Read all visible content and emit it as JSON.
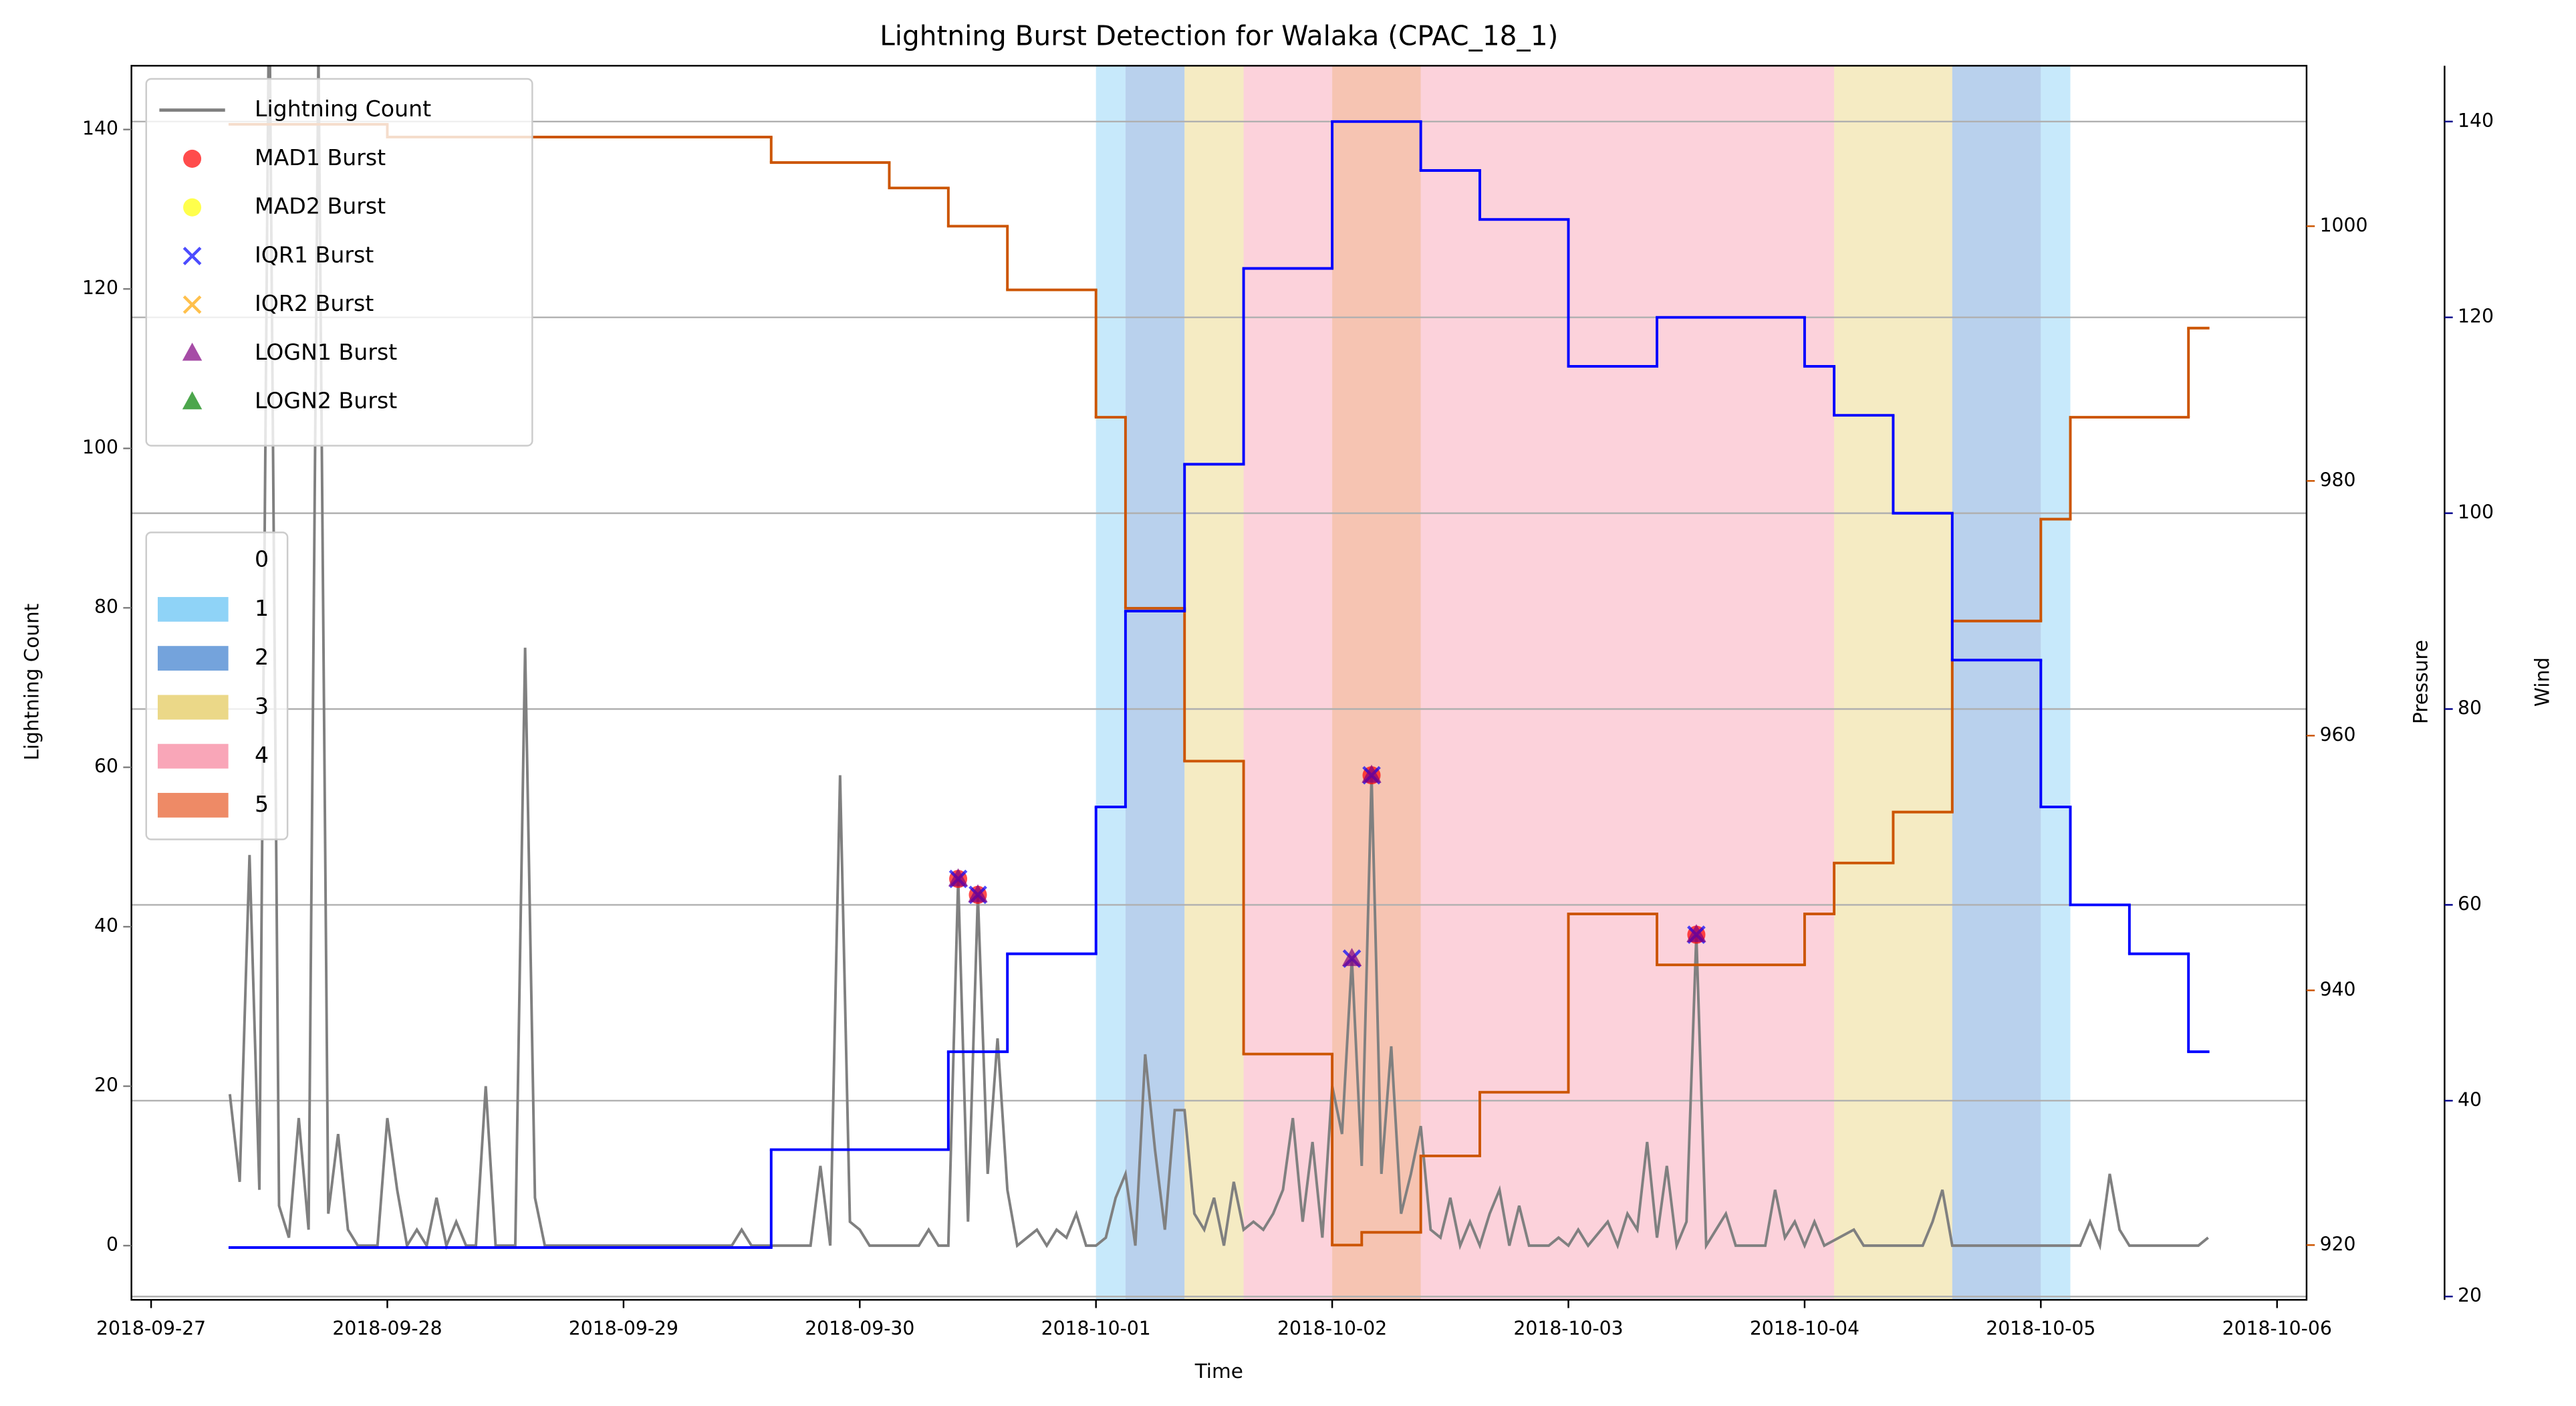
{
  "chart_data": {
    "type": "line",
    "title": "Lightning Burst Detection for Walaka (CPAC_18_1)",
    "xlabel": "Time",
    "ylabel": "Lightning Count",
    "y2label": "Pressure",
    "y3label": "Wind",
    "ycolor": "#808080",
    "y2color": "#cc5500",
    "y3color": "#00008b",
    "xlim": [
      "2018-09-26T22:00",
      "2018-10-06T03:00"
    ],
    "xticks": [
      "2018-09-27",
      "2018-09-28",
      "2018-09-29",
      "2018-09-30",
      "2018-10-01",
      "2018-10-02",
      "2018-10-03",
      "2018-10-04",
      "2018-10-05",
      "2018-10-06"
    ],
    "ylim": [
      -6.8,
      148
    ],
    "yticks": [
      0,
      20,
      40,
      60,
      80,
      100,
      120,
      140
    ],
    "y2lim": [
      915.7,
      1012.6
    ],
    "y2ticks": [
      920,
      940,
      960,
      980,
      1000
    ],
    "y3lim": [
      19.66,
      145.7
    ],
    "y3ticks": [
      20,
      40,
      60,
      80,
      100,
      120,
      140
    ],
    "grid": true,
    "grid_axis": "y3",
    "legend": "upper left",
    "band_legend": "center left",
    "band_categories": [
      {
        "name": "0",
        "color": "none"
      },
      {
        "name": "1",
        "color": "#8fd3f7"
      },
      {
        "name": "2",
        "color": "#74a3dc"
      },
      {
        "name": "3",
        "color": "#ebd888"
      },
      {
        "name": "4",
        "color": "#f9a6b8"
      },
      {
        "name": "5",
        "color": "#ee8a66"
      }
    ],
    "bands": [
      {
        "start": "2018-10-01T00:00",
        "end": "2018-10-01T03:00",
        "category": 1
      },
      {
        "start": "2018-10-01T03:00",
        "end": "2018-10-01T09:00",
        "category": 2
      },
      {
        "start": "2018-10-01T09:00",
        "end": "2018-10-01T15:00",
        "category": 3
      },
      {
        "start": "2018-10-01T15:00",
        "end": "2018-10-02T00:00",
        "category": 4
      },
      {
        "start": "2018-10-02T00:00",
        "end": "2018-10-02T09:00",
        "category": 5
      },
      {
        "start": "2018-10-02T09:00",
        "end": "2018-10-04T03:00",
        "category": 4
      },
      {
        "start": "2018-10-04T03:00",
        "end": "2018-10-04T15:00",
        "category": 3
      },
      {
        "start": "2018-10-04T15:00",
        "end": "2018-10-05T00:00",
        "category": 2
      },
      {
        "start": "2018-10-05T00:00",
        "end": "2018-10-05T03:00",
        "category": 1
      }
    ],
    "series": [
      {
        "name": "Lightning Count",
        "type": "line",
        "color": "#808080",
        "axis": "y",
        "x": [
          "2018-09-27T08:00",
          "2018-09-27T09:00",
          "2018-09-27T10:00",
          "2018-09-27T11:00",
          "2018-09-27T12:00",
          "2018-09-27T13:00",
          "2018-09-27T14:00",
          "2018-09-27T15:00",
          "2018-09-27T16:00",
          "2018-09-27T17:00",
          "2018-09-27T18:00",
          "2018-09-27T19:00",
          "2018-09-27T20:00",
          "2018-09-27T21:00",
          "2018-09-27T23:00",
          "2018-09-28T00:00",
          "2018-09-28T01:00",
          "2018-09-28T02:00",
          "2018-09-28T03:00",
          "2018-09-28T04:00",
          "2018-09-28T05:00",
          "2018-09-28T06:00",
          "2018-09-28T07:00",
          "2018-09-28T08:00",
          "2018-09-28T09:00",
          "2018-09-28T10:00",
          "2018-09-28T11:00",
          "2018-09-28T13:00",
          "2018-09-28T14:00",
          "2018-09-28T15:00",
          "2018-09-28T16:00",
          "2018-09-29T11:00",
          "2018-09-29T12:00",
          "2018-09-29T13:00",
          "2018-09-29T19:00",
          "2018-09-29T20:00",
          "2018-09-29T21:00",
          "2018-09-29T22:00",
          "2018-09-29T23:00",
          "2018-09-30T00:00",
          "2018-09-30T01:00",
          "2018-09-30T06:00",
          "2018-09-30T07:00",
          "2018-09-30T08:00",
          "2018-09-30T09:00",
          "2018-09-30T10:00",
          "2018-09-30T11:00",
          "2018-09-30T12:00",
          "2018-09-30T13:00",
          "2018-09-30T14:00",
          "2018-09-30T15:00",
          "2018-09-30T16:00",
          "2018-09-30T17:00",
          "2018-09-30T18:00",
          "2018-09-30T19:00",
          "2018-09-30T20:00",
          "2018-09-30T21:00",
          "2018-09-30T22:00",
          "2018-09-30T23:00",
          "2018-10-01T00:00",
          "2018-10-01T01:00",
          "2018-10-01T02:00",
          "2018-10-01T03:00",
          "2018-10-01T04:00",
          "2018-10-01T05:00",
          "2018-10-01T06:00",
          "2018-10-01T07:00",
          "2018-10-01T08:00",
          "2018-10-01T09:00",
          "2018-10-01T10:00",
          "2018-10-01T11:00",
          "2018-10-01T12:00",
          "2018-10-01T13:00",
          "2018-10-01T14:00",
          "2018-10-01T15:00",
          "2018-10-01T16:00",
          "2018-10-01T17:00",
          "2018-10-01T18:00",
          "2018-10-01T19:00",
          "2018-10-01T20:00",
          "2018-10-01T21:00",
          "2018-10-01T22:00",
          "2018-10-01T23:00",
          "2018-10-02T00:00",
          "2018-10-02T01:00",
          "2018-10-02T02:00",
          "2018-10-02T03:00",
          "2018-10-02T04:00",
          "2018-10-02T05:00",
          "2018-10-02T06:00",
          "2018-10-02T07:00",
          "2018-10-02T08:00",
          "2018-10-02T09:00",
          "2018-10-02T10:00",
          "2018-10-02T11:00",
          "2018-10-02T12:00",
          "2018-10-02T13:00",
          "2018-10-02T14:00",
          "2018-10-02T15:00",
          "2018-10-02T16:00",
          "2018-10-02T17:00",
          "2018-10-02T18:00",
          "2018-10-02T19:00",
          "2018-10-02T20:00",
          "2018-10-02T22:00",
          "2018-10-02T23:00",
          "2018-10-03T00:00",
          "2018-10-03T01:00",
          "2018-10-03T02:00",
          "2018-10-03T04:00",
          "2018-10-03T05:00",
          "2018-10-03T06:00",
          "2018-10-03T07:00",
          "2018-10-03T08:00",
          "2018-10-03T09:00",
          "2018-10-03T10:00",
          "2018-10-03T11:00",
          "2018-10-03T12:00",
          "2018-10-03T13:00",
          "2018-10-03T14:00",
          "2018-10-03T15:00",
          "2018-10-03T16:00",
          "2018-10-03T17:00",
          "2018-10-03T20:00",
          "2018-10-03T21:00",
          "2018-10-03T22:00",
          "2018-10-03T23:00",
          "2018-10-04T00:00",
          "2018-10-04T01:00",
          "2018-10-04T02:00",
          "2018-10-04T05:00",
          "2018-10-04T06:00",
          "2018-10-04T12:00",
          "2018-10-04T13:00",
          "2018-10-04T14:00",
          "2018-10-04T15:00",
          "2018-10-05T04:00",
          "2018-10-05T05:00",
          "2018-10-05T06:00",
          "2018-10-05T07:00",
          "2018-10-05T08:00",
          "2018-10-05T09:00",
          "2018-10-05T16:00",
          "2018-10-05T17:00"
        ],
        "values": [
          19,
          8,
          49,
          7,
          160,
          5,
          1,
          16,
          2,
          150,
          4,
          14,
          2,
          0,
          0,
          16,
          7,
          0,
          2,
          0,
          6,
          0,
          3,
          0,
          0,
          20,
          0,
          0,
          75,
          6,
          0,
          0,
          2,
          0,
          0,
          10,
          0,
          59,
          3,
          2,
          0,
          0,
          2,
          0,
          0,
          46,
          3,
          44,
          9,
          26,
          7,
          0,
          1,
          2,
          0,
          2,
          1,
          4,
          0,
          0,
          1,
          6,
          9,
          0,
          24,
          12,
          2,
          17,
          17,
          4,
          2,
          6,
          0,
          8,
          2,
          3,
          2,
          4,
          7,
          16,
          3,
          13,
          1,
          20,
          14,
          36,
          10,
          59,
          9,
          25,
          4,
          9,
          15,
          2,
          1,
          6,
          0,
          3,
          0,
          4,
          7,
          0,
          5,
          0,
          0,
          1,
          0,
          2,
          0,
          3,
          0,
          4,
          2,
          13,
          1,
          10,
          0,
          3,
          39,
          0,
          2,
          4,
          0,
          0,
          7,
          1,
          3,
          0,
          3,
          0,
          2,
          0,
          0,
          3,
          7,
          0,
          0,
          3,
          0,
          9,
          2,
          0,
          0,
          1
        ]
      },
      {
        "type": "step",
        "color": "#cc5500",
        "axis": "y2",
        "x": [
          "2018-09-27T08:00",
          "2018-09-28T00:00",
          "2018-09-29T15:00",
          "2018-09-30T03:00",
          "2018-09-30T09:00",
          "2018-09-30T15:00",
          "2018-10-01T00:00",
          "2018-10-01T03:00",
          "2018-10-01T09:00",
          "2018-10-01T15:00",
          "2018-10-02T00:00",
          "2018-10-02T03:00",
          "2018-10-02T09:00",
          "2018-10-02T15:00",
          "2018-10-03T00:00",
          "2018-10-03T09:00",
          "2018-10-04T00:00",
          "2018-10-04T03:00",
          "2018-10-04T09:00",
          "2018-10-04T15:00",
          "2018-10-05T00:00",
          "2018-10-05T03:00",
          "2018-10-05T15:00",
          "2018-10-05T17:00"
        ],
        "values": [
          1008,
          1007,
          1005,
          1003,
          1000,
          995,
          985,
          970,
          958,
          935,
          920,
          921,
          927,
          932,
          946,
          942,
          946,
          950,
          954,
          969,
          977,
          985,
          992,
          992
        ]
      },
      {
        "type": "step",
        "color": "#0000ff",
        "axis": "y3",
        "x": [
          "2018-09-27T08:00",
          "2018-09-29T15:00",
          "2018-09-30T09:00",
          "2018-09-30T15:00",
          "2018-10-01T00:00",
          "2018-10-01T03:00",
          "2018-10-01T09:00",
          "2018-10-01T15:00",
          "2018-10-02T00:00",
          "2018-10-02T09:00",
          "2018-10-02T15:00",
          "2018-10-03T00:00",
          "2018-10-03T09:00",
          "2018-10-04T00:00",
          "2018-10-04T03:00",
          "2018-10-04T09:00",
          "2018-10-04T15:00",
          "2018-10-05T00:00",
          "2018-10-05T03:00",
          "2018-10-05T09:00",
          "2018-10-05T15:00",
          "2018-10-05T17:00"
        ],
        "values": [
          25,
          35,
          45,
          55,
          70,
          90,
          105,
          125,
          140,
          135,
          130,
          115,
          120,
          115,
          110,
          100,
          85,
          70,
          60,
          55,
          45,
          45
        ]
      },
      {
        "name": "MAD1 Burst",
        "type": "scatter",
        "marker": "o",
        "color": "#ff0000",
        "axis": "y",
        "x": [
          "2018-09-30T10:00",
          "2018-09-30T12:00",
          "2018-10-02T04:00",
          "2018-10-03T13:00"
        ],
        "values": [
          46,
          44,
          59,
          39
        ]
      },
      {
        "name": "MAD2 Burst",
        "type": "scatter",
        "marker": "o",
        "color": "#ffff00",
        "axis": "y",
        "x": [],
        "values": []
      },
      {
        "name": "IQR1 Burst",
        "type": "scatter",
        "marker": "x",
        "color": "#0000ff",
        "axis": "y",
        "x": [
          "2018-09-30T10:00",
          "2018-09-30T12:00",
          "2018-10-02T02:00",
          "2018-10-02T04:00",
          "2018-10-03T13:00"
        ],
        "values": [
          46,
          44,
          36,
          59,
          39
        ]
      },
      {
        "name": "IQR2 Burst",
        "type": "scatter",
        "marker": "x",
        "color": "#ffa500",
        "axis": "y",
        "x": [],
        "values": []
      },
      {
        "name": "LOGN1 Burst",
        "type": "scatter",
        "marker": "^",
        "color": "#800080",
        "axis": "y",
        "x": [
          "2018-09-30T10:00",
          "2018-09-30T12:00",
          "2018-10-02T02:00",
          "2018-10-02T04:00",
          "2018-10-03T13:00"
        ],
        "values": [
          46,
          44,
          36,
          59,
          39
        ]
      },
      {
        "name": "LOGN2 Burst",
        "type": "scatter",
        "marker": "^",
        "color": "#008000",
        "axis": "y",
        "x": [],
        "values": []
      }
    ]
  }
}
